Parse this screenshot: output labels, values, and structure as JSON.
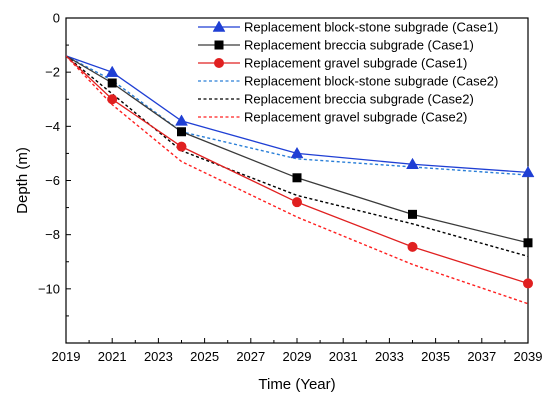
{
  "chart_data": {
    "type": "line",
    "xlabel": "Time (Year)",
    "ylabel": "Depth (m)",
    "xlim": [
      2019,
      2039
    ],
    "ylim": [
      -12,
      0
    ],
    "xticks": [
      2019,
      2021,
      2023,
      2025,
      2027,
      2029,
      2031,
      2033,
      2035,
      2037,
      2039
    ],
    "yticks": [
      0,
      -2,
      -4,
      -6,
      -8,
      -10
    ],
    "grid": false,
    "legend_position": "top-right",
    "series": [
      {
        "name": "Replacement block-stone subgrade (Case1)",
        "color": "#1f3fd4",
        "style": "solid",
        "marker": "triangle",
        "x": [
          2019,
          2021,
          2024,
          2029,
          2034,
          2039
        ],
        "y": [
          -1.4,
          -2.0,
          -3.8,
          -5.0,
          -5.4,
          -5.7
        ]
      },
      {
        "name": "Replacement breccia subgrade (Case1)",
        "color": "#3a3a3a",
        "style": "solid",
        "marker": "square",
        "x": [
          2019,
          2021,
          2024,
          2029,
          2034,
          2039
        ],
        "y": [
          -1.4,
          -2.4,
          -4.2,
          -5.9,
          -7.25,
          -8.3
        ]
      },
      {
        "name": "Replacement gravel subgrade (Case1)",
        "color": "#e02020",
        "style": "solid",
        "marker": "circle",
        "x": [
          2019,
          2021,
          2024,
          2029,
          2034,
          2039
        ],
        "y": [
          -1.4,
          -3.0,
          -4.75,
          -6.8,
          -8.45,
          -9.8
        ]
      },
      {
        "name": "Replacement block-stone subgrade (Case2)",
        "color": "#2a7fd8",
        "style": "dotted",
        "marker": "none",
        "x": [
          2019,
          2021,
          2024,
          2029,
          2034,
          2039
        ],
        "y": [
          -1.4,
          -2.3,
          -4.2,
          -5.2,
          -5.5,
          -5.8
        ]
      },
      {
        "name": "Replacement breccia subgrade (Case2)",
        "color": "#000000",
        "style": "dotted",
        "marker": "none",
        "x": [
          2019,
          2021,
          2024,
          2029,
          2034,
          2039
        ],
        "y": [
          -1.4,
          -2.8,
          -4.9,
          -6.55,
          -7.6,
          -8.8
        ]
      },
      {
        "name": "Replacement gravel subgrade (Case2)",
        "color": "#ff2020",
        "style": "dotted",
        "marker": "none",
        "x": [
          2019,
          2021,
          2024,
          2029,
          2034,
          2039
        ],
        "y": [
          -1.4,
          -3.2,
          -5.3,
          -7.35,
          -9.1,
          -10.55
        ]
      }
    ]
  }
}
